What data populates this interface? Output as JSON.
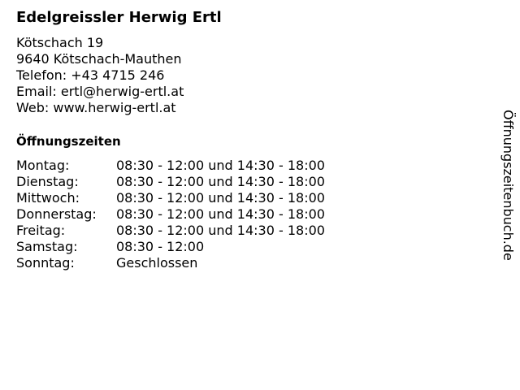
{
  "title": "Edelgreissler Herwig Ertl",
  "address": {
    "street": "Kötschach 19",
    "city": "9640 Kötschach-Mauthen",
    "phone": "Telefon: +43 4715 246",
    "email": "Email: ertl@herwig-ertl.at",
    "web": "Web: www.herwig-ertl.at"
  },
  "hours_heading": "Öffnungszeiten",
  "hours": [
    {
      "day": "Montag:",
      "time": "08:30 - 12:00 und 14:30 - 18:00"
    },
    {
      "day": "Dienstag:",
      "time": "08:30 - 12:00 und 14:30 - 18:00"
    },
    {
      "day": "Mittwoch:",
      "time": "08:30 - 12:00 und 14:30 - 18:00"
    },
    {
      "day": "Donnerstag:",
      "time": "08:30 - 12:00 und 14:30 - 18:00"
    },
    {
      "day": "Freitag:",
      "time": "08:30 - 12:00 und 14:30 - 18:00"
    },
    {
      "day": "Samstag:",
      "time": "08:30 - 12:00"
    },
    {
      "day": "Sonntag:",
      "time": "Geschlossen"
    }
  ],
  "side_label": "Öffnungszeitenbuch.de"
}
